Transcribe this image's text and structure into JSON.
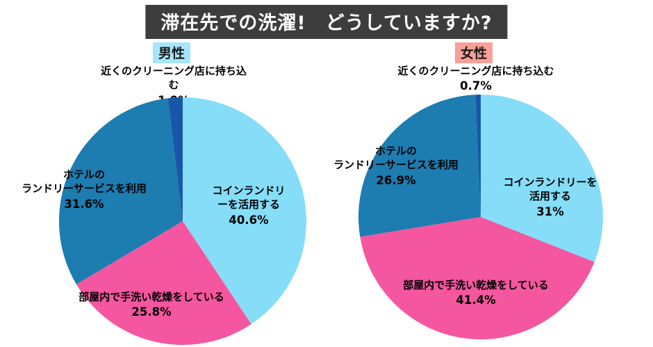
{
  "title": "滞在先での洗濯!　どうしていますか?",
  "colors": {
    "title_bg": "#3d3d3d",
    "title_text": "#ffffff",
    "male_badge_bg": "#a6e6fb",
    "female_badge_bg": "#f99f97",
    "coin_laundry": "#85ddf8",
    "hand_wash": "#f4569f",
    "hotel_service": "#1d7cb0",
    "cleaning_shop": "#1857a8"
  },
  "chart_data": [
    {
      "type": "pie",
      "title": "男性",
      "direction": "clockwise",
      "start_angle_deg": -90,
      "slices": [
        {
          "label": "コインランドリーを活用する",
          "value": 40.6,
          "display": "40.6%",
          "color": "#85ddf8"
        },
        {
          "label": "部屋内で手洗い乾燥をしている",
          "value": 25.8,
          "display": "25.8%",
          "color": "#f4569f"
        },
        {
          "label": "ホテルの\nランドリーサービスを利用",
          "value": 31.6,
          "display": "31.6%",
          "color": "#1d7cb0"
        },
        {
          "label": "近くのクリーニング店に持ち込む",
          "value": 1.9,
          "display": "1.9%",
          "color": "#1857a8"
        }
      ]
    },
    {
      "type": "pie",
      "title": "女性",
      "direction": "clockwise",
      "start_angle_deg": -90,
      "slices": [
        {
          "label": "コインランドリーを活用する",
          "value": 31,
          "display": "31%",
          "color": "#85ddf8"
        },
        {
          "label": "部屋内で手洗い乾燥をしている",
          "value": 41.4,
          "display": "41.4%",
          "color": "#f4569f"
        },
        {
          "label": "ホテルの\nランドリーサービスを利用",
          "value": 26.9,
          "display": "26.9%",
          "color": "#1d7cb0"
        },
        {
          "label": "近くのクリーニング店に持ち込む",
          "value": 0.7,
          "display": "0.7%",
          "color": "#1857a8"
        }
      ]
    }
  ]
}
